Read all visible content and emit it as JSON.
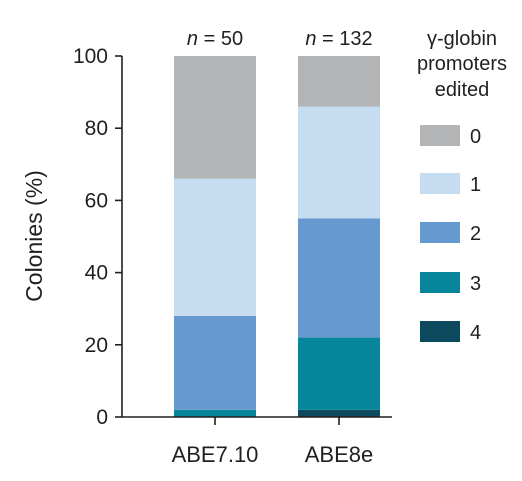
{
  "chart_data": {
    "type": "bar",
    "stacked": true,
    "categories": [
      "ABE7.10",
      "ABE8e"
    ],
    "n_labels": [
      {
        "italic": "n",
        "rest": " = 50"
      },
      {
        "italic": "n",
        "rest": " = 132"
      }
    ],
    "ylabel": "Colonies (%)",
    "ylim": [
      0,
      100
    ],
    "yticks": [
      "0",
      "20",
      "40",
      "60",
      "80",
      "100"
    ],
    "legend": {
      "title_lines": [
        "γ-globin",
        "promoters",
        "edited"
      ],
      "placement": "right"
    },
    "series": [
      {
        "name": "4",
        "color": "#0d4a5f",
        "values": [
          0,
          2
        ]
      },
      {
        "name": "3",
        "color": "#06859b",
        "values": [
          2,
          20
        ]
      },
      {
        "name": "2",
        "color": "#6699d0",
        "values": [
          26,
          33
        ]
      },
      {
        "name": "1",
        "color": "#c6dcf0",
        "values": [
          38,
          31
        ]
      },
      {
        "name": "0",
        "color": "#b2b4b6",
        "values": [
          34,
          14
        ]
      }
    ],
    "legend_order": [
      "0",
      "1",
      "2",
      "3",
      "4"
    ]
  }
}
